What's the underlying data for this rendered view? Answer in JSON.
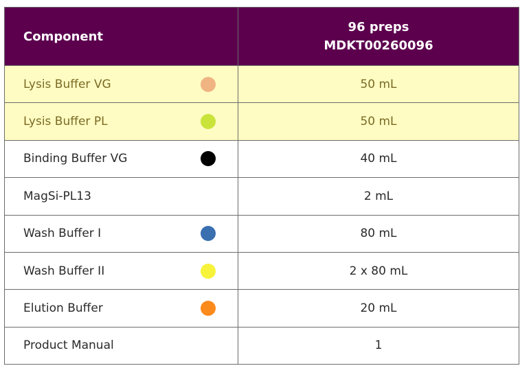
{
  "header": {
    "component_label": "Component",
    "preps_label": "96 preps",
    "catalog_number": "MDKT00260096"
  },
  "rows": [
    {
      "component": "Lysis Buffer VG",
      "value": "50 mL",
      "dot_color": "#f0b483",
      "highlight": true
    },
    {
      "component": "Lysis Buffer PL",
      "value": "50 mL",
      "dot_color": "#c9e33a",
      "highlight": true
    },
    {
      "component": "Binding Buffer VG",
      "value": "40 mL",
      "dot_color": "#000000",
      "highlight": false
    },
    {
      "component": "MagSi-PL13",
      "value": "2 mL",
      "dot_color": null,
      "highlight": false
    },
    {
      "component": "Wash Buffer I",
      "value": "80 mL",
      "dot_color": "#3a6fb0",
      "highlight": false
    },
    {
      "component": "Wash Buffer II",
      "value": "2 x 80 mL",
      "dot_color": "#f7f23a",
      "highlight": false
    },
    {
      "component": "Elution Buffer",
      "value": "20 mL",
      "dot_color": "#fb8a1c",
      "highlight": false
    },
    {
      "component": "Product Manual",
      "value": "1",
      "dot_color": null,
      "highlight": false
    }
  ],
  "colors": {
    "header_bg": "#5c004e",
    "highlight_bg": "#fefcc2",
    "border": "#6b6b6b"
  }
}
